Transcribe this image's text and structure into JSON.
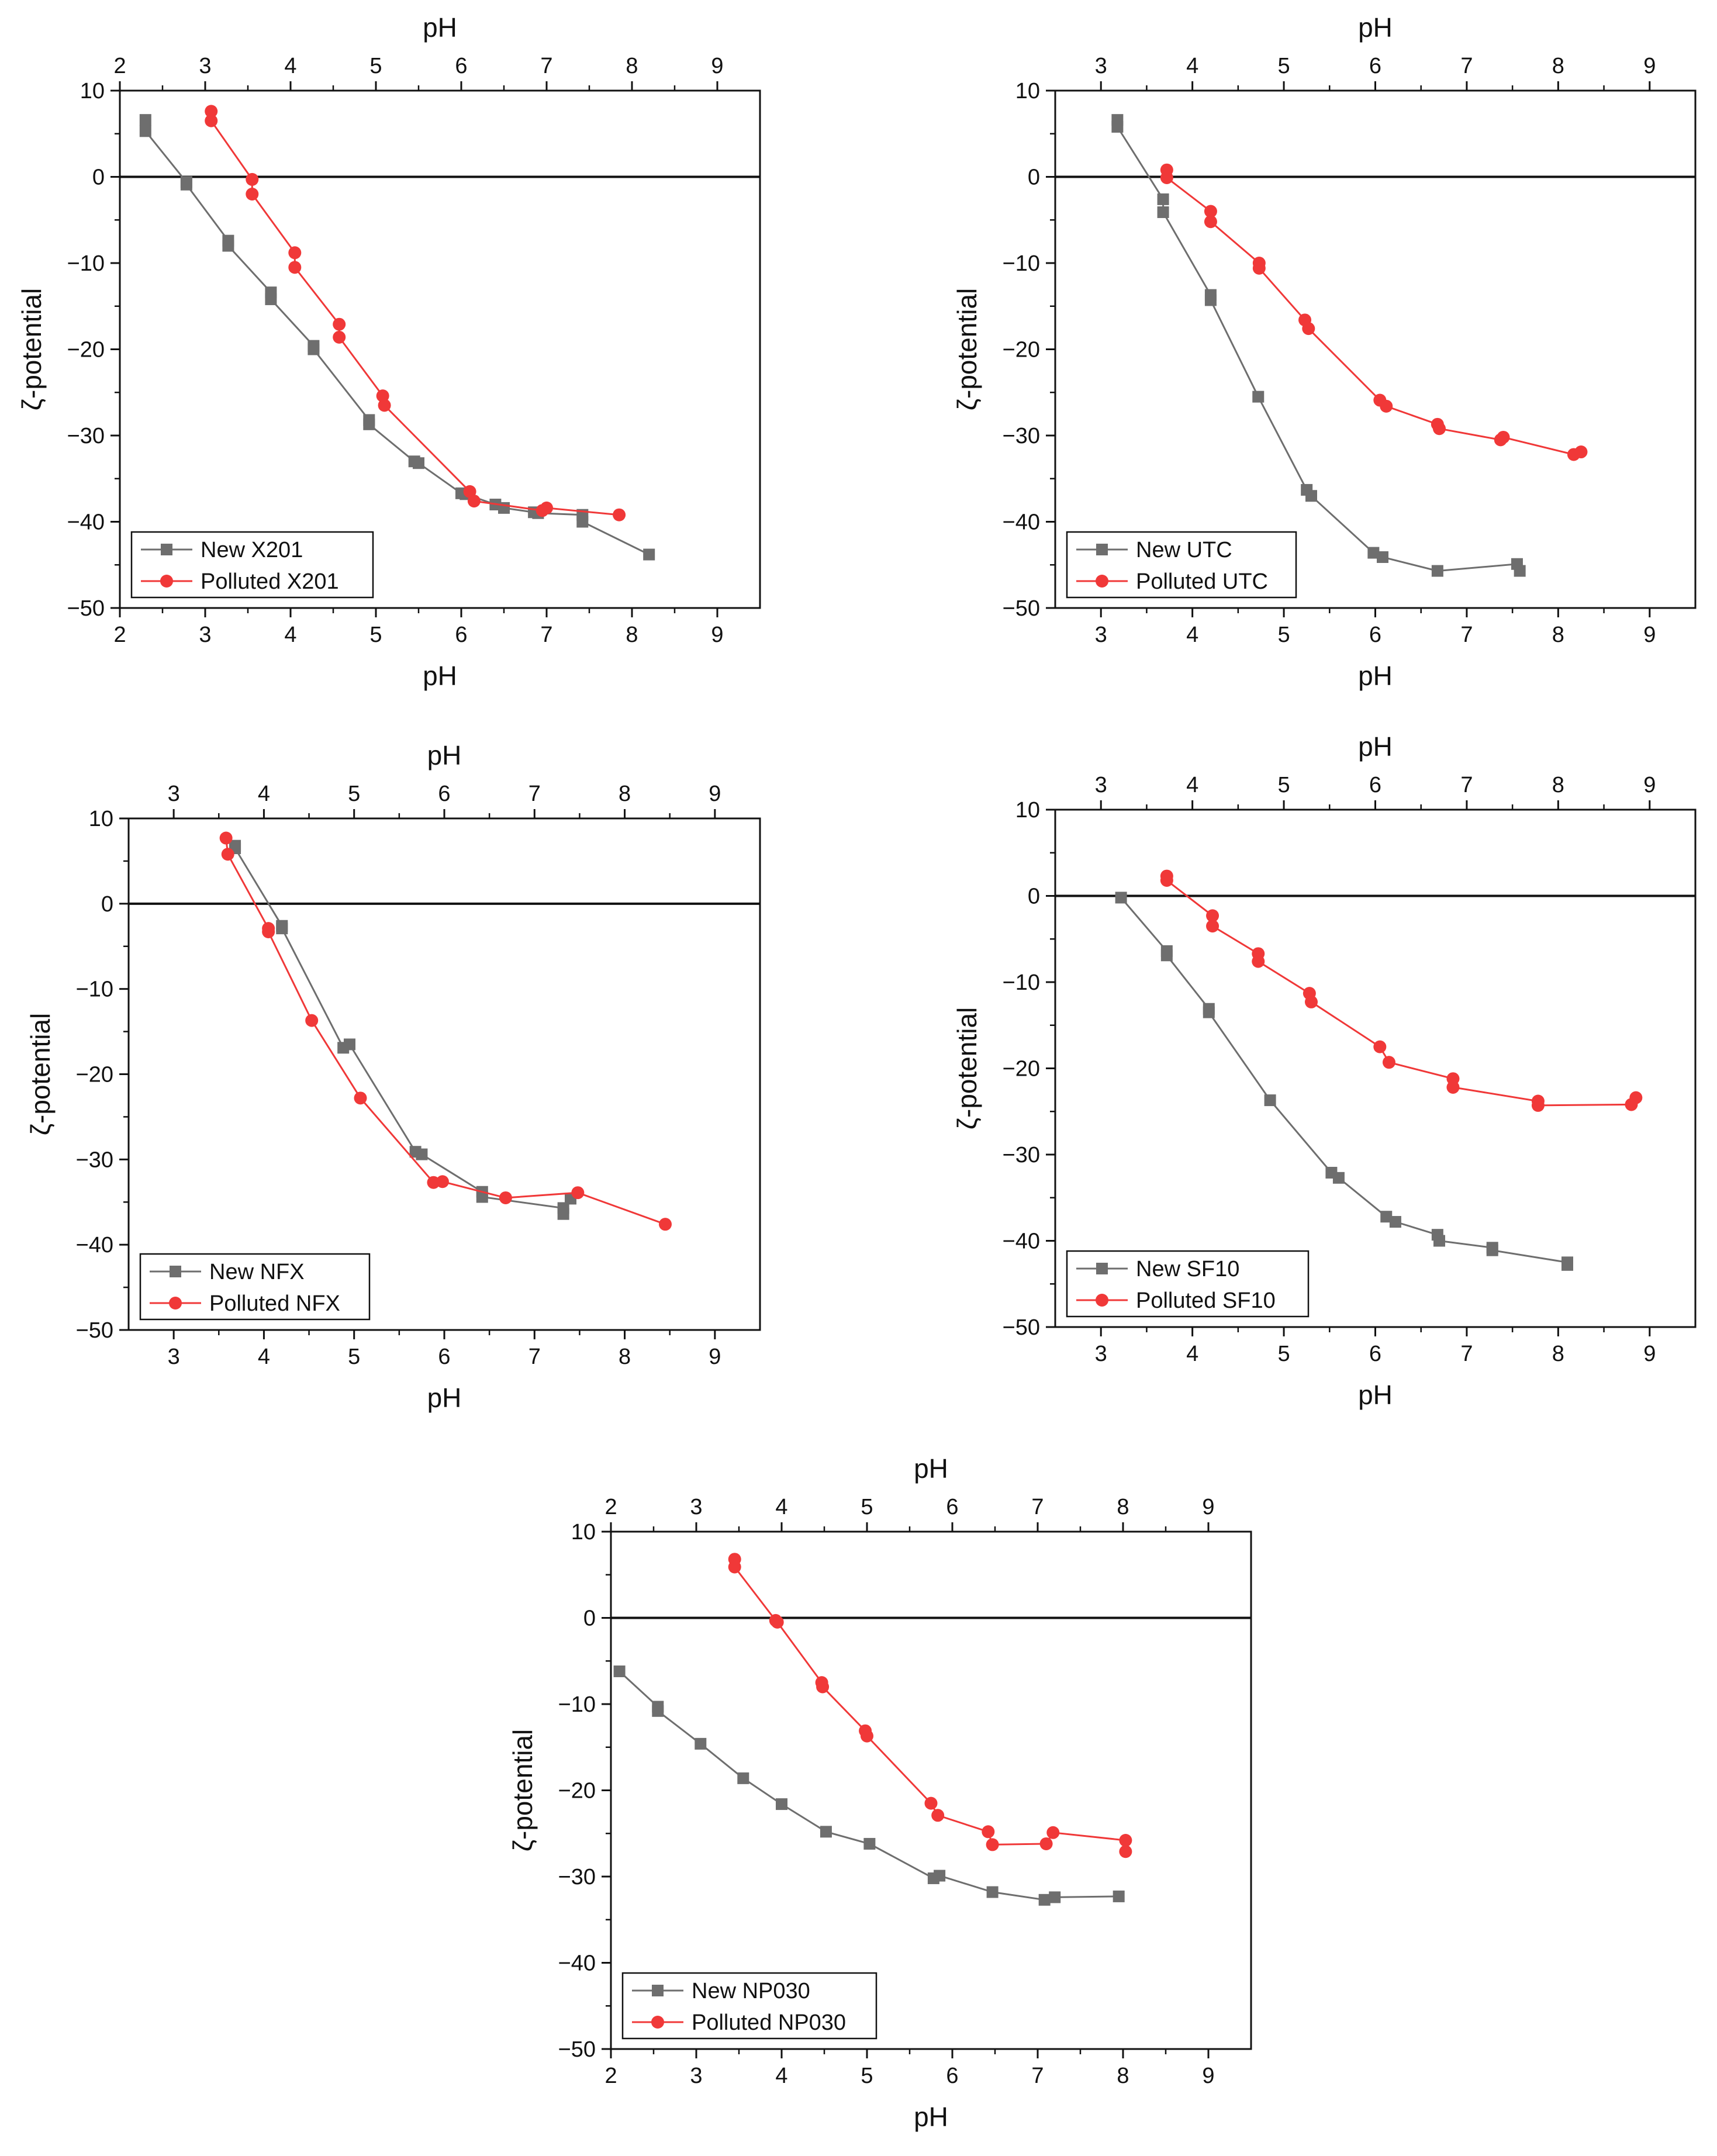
{
  "figure": {
    "background": "#ffffff"
  },
  "style": {
    "new_color": "#6e6e6e",
    "polluted_color": "#f03838",
    "axis_color": "#111111"
  },
  "chart_data": [
    {
      "type": "scatter",
      "xlabel": "pH",
      "ylabel": "ζ-potential",
      "xlim": [
        2,
        9.5
      ],
      "ylim": [
        -50,
        10
      ],
      "xticks": [
        "2",
        "3",
        "4",
        "5",
        "6",
        "7",
        "8",
        "9"
      ],
      "yticks": [
        "−50",
        "−40",
        "−30",
        "−20",
        "−10",
        "0",
        "10"
      ],
      "legend_placement": "bottom-left",
      "grid": false,
      "series": [
        {
          "name": "New X201",
          "marker": "square",
          "x": [
            2.3,
            2.3,
            2.78,
            2.78,
            3.27,
            3.27,
            3.77,
            3.77,
            4.27,
            4.27,
            4.92,
            4.92,
            5.45,
            5.5,
            6.0,
            6.05,
            6.4,
            6.5,
            6.85,
            6.9,
            7.42,
            7.42,
            8.2
          ],
          "y": [
            6.6,
            5.3,
            -0.6,
            -0.9,
            -7.4,
            -8.0,
            -13.4,
            -14.2,
            -19.6,
            -20.0,
            -28.2,
            -28.7,
            -33.0,
            -33.2,
            -36.7,
            -36.8,
            -38.0,
            -38.4,
            -38.9,
            -39.0,
            -39.2,
            -40.0,
            -43.8
          ]
        },
        {
          "name": "Polluted X201",
          "marker": "circle",
          "x": [
            3.07,
            3.07,
            3.55,
            3.55,
            4.05,
            4.05,
            4.57,
            4.57,
            5.08,
            5.1,
            6.1,
            6.15,
            6.95,
            7.0,
            7.85
          ],
          "y": [
            7.6,
            6.5,
            -0.3,
            -2.0,
            -8.8,
            -10.5,
            -17.1,
            -18.6,
            -25.4,
            -26.5,
            -36.5,
            -37.6,
            -38.7,
            -38.4,
            -39.2
          ]
        }
      ]
    },
    {
      "type": "scatter",
      "xlabel": "pH",
      "ylabel": "ζ-potential",
      "xlim": [
        2.5,
        9.5
      ],
      "ylim": [
        -50,
        10
      ],
      "xticks": [
        "3",
        "4",
        "5",
        "6",
        "7",
        "8",
        "9"
      ],
      "yticks": [
        "−50",
        "−40",
        "−30",
        "−20",
        "−10",
        "0",
        "10"
      ],
      "legend_placement": "bottom-left",
      "grid": false,
      "series": [
        {
          "name": "New UTC",
          "marker": "square",
          "x": [
            3.18,
            3.18,
            3.68,
            3.68,
            4.2,
            4.2,
            4.72,
            5.25,
            5.3,
            5.98,
            6.08,
            6.68,
            7.55,
            7.58
          ],
          "y": [
            6.6,
            5.8,
            -2.6,
            -4.1,
            -13.7,
            -14.3,
            -25.5,
            -36.3,
            -37.0,
            -43.6,
            -44.1,
            -45.7,
            -44.9,
            -45.7
          ]
        },
        {
          "name": "Polluted UTC",
          "marker": "circle",
          "x": [
            3.72,
            3.72,
            4.2,
            4.2,
            4.73,
            4.73,
            5.23,
            5.27,
            6.05,
            6.12,
            6.68,
            6.7,
            7.37,
            7.4,
            8.17,
            8.25
          ],
          "y": [
            0.8,
            -0.1,
            -4.0,
            -5.2,
            -10.0,
            -10.6,
            -16.6,
            -17.6,
            -25.9,
            -26.6,
            -28.7,
            -29.2,
            -30.5,
            -30.2,
            -32.2,
            -31.9
          ]
        }
      ]
    },
    {
      "type": "scatter",
      "xlabel": "pH",
      "ylabel": "ζ-potential",
      "xlim": [
        2.5,
        9.5
      ],
      "ylim": [
        -50,
        10
      ],
      "xticks": [
        "3",
        "4",
        "5",
        "6",
        "7",
        "8",
        "9"
      ],
      "yticks": [
        "−50",
        "−40",
        "−30",
        "−20",
        "−10",
        "0",
        "10"
      ],
      "legend_placement": "bottom-left",
      "grid": false,
      "series": [
        {
          "name": "New NFX",
          "marker": "square",
          "x": [
            3.68,
            3.68,
            4.2,
            4.2,
            4.88,
            4.95,
            5.68,
            5.75,
            6.42,
            6.42,
            7.32,
            7.32,
            7.4
          ],
          "y": [
            6.8,
            6.5,
            -2.6,
            -2.9,
            -16.9,
            -16.5,
            -29.1,
            -29.4,
            -33.8,
            -34.4,
            -35.7,
            -36.4,
            -34.6
          ]
        },
        {
          "name": "Polluted NFX",
          "marker": "circle",
          "x": [
            3.58,
            3.6,
            4.05,
            4.05,
            4.53,
            5.07,
            5.88,
            5.98,
            6.68,
            7.48,
            8.45
          ],
          "y": [
            7.7,
            5.8,
            -2.9,
            -3.3,
            -13.7,
            -22.8,
            -32.7,
            -32.6,
            -34.5,
            -33.9,
            -37.6
          ]
        }
      ]
    },
    {
      "type": "scatter",
      "xlabel": "pH",
      "ylabel": "ζ-potential",
      "xlim": [
        2.5,
        9.5
      ],
      "ylim": [
        -50,
        10
      ],
      "xticks": [
        "3",
        "4",
        "5",
        "6",
        "7",
        "8",
        "9"
      ],
      "yticks": [
        "−50",
        "−40",
        "−30",
        "−20",
        "−10",
        "0",
        "10"
      ],
      "legend_placement": "bottom-left",
      "grid": false,
      "series": [
        {
          "name": "New SF10",
          "marker": "square",
          "x": [
            3.22,
            3.72,
            3.72,
            4.18,
            4.18,
            4.85,
            5.52,
            5.6,
            6.12,
            6.22,
            6.68,
            6.7,
            7.28,
            7.28,
            8.1,
            8.1
          ],
          "y": [
            -0.2,
            -6.4,
            -6.9,
            -13.1,
            -13.5,
            -23.7,
            -32.1,
            -32.7,
            -37.2,
            -37.8,
            -39.3,
            -40.0,
            -40.8,
            -41.1,
            -42.5,
            -42.8
          ]
        },
        {
          "name": "Polluted SF10",
          "marker": "circle",
          "x": [
            3.72,
            3.72,
            4.22,
            4.22,
            4.72,
            4.72,
            5.28,
            5.3,
            6.05,
            6.15,
            6.85,
            6.85,
            7.78,
            7.78,
            8.8,
            8.85
          ],
          "y": [
            2.3,
            1.8,
            -2.3,
            -3.5,
            -6.7,
            -7.6,
            -11.3,
            -12.3,
            -17.5,
            -19.3,
            -21.2,
            -22.2,
            -23.8,
            -24.3,
            -24.2,
            -23.4
          ]
        }
      ]
    },
    {
      "type": "scatter",
      "xlabel": "pH",
      "ylabel": "ζ-potential",
      "xlim": [
        2,
        9.5
      ],
      "ylim": [
        -50,
        10
      ],
      "xticks": [
        "2",
        "3",
        "4",
        "5",
        "6",
        "7",
        "8",
        "9"
      ],
      "yticks": [
        "−50",
        "−40",
        "−30",
        "−20",
        "−10",
        "0",
        "10"
      ],
      "legend_placement": "bottom-left",
      "grid": false,
      "series": [
        {
          "name": "New NP030",
          "marker": "square",
          "x": [
            2.1,
            2.55,
            2.55,
            3.05,
            3.55,
            4.0,
            4.52,
            5.03,
            5.78,
            5.85,
            6.47,
            7.08,
            7.2,
            7.95
          ],
          "y": [
            -6.2,
            -10.3,
            -10.8,
            -14.6,
            -18.6,
            -21.6,
            -24.8,
            -26.2,
            -30.2,
            -29.9,
            -31.8,
            -32.7,
            -32.4,
            -32.3
          ]
        },
        {
          "name": "Polluted NP030",
          "marker": "circle",
          "x": [
            3.45,
            3.45,
            3.93,
            3.95,
            4.47,
            4.48,
            4.98,
            5.0,
            5.75,
            5.83,
            6.42,
            6.47,
            7.1,
            7.18,
            8.03,
            8.03
          ],
          "y": [
            6.8,
            5.9,
            -0.3,
            -0.5,
            -7.5,
            -8.0,
            -13.1,
            -13.7,
            -21.5,
            -22.9,
            -24.8,
            -26.3,
            -26.2,
            -24.9,
            -25.8,
            -27.1
          ]
        }
      ]
    }
  ]
}
